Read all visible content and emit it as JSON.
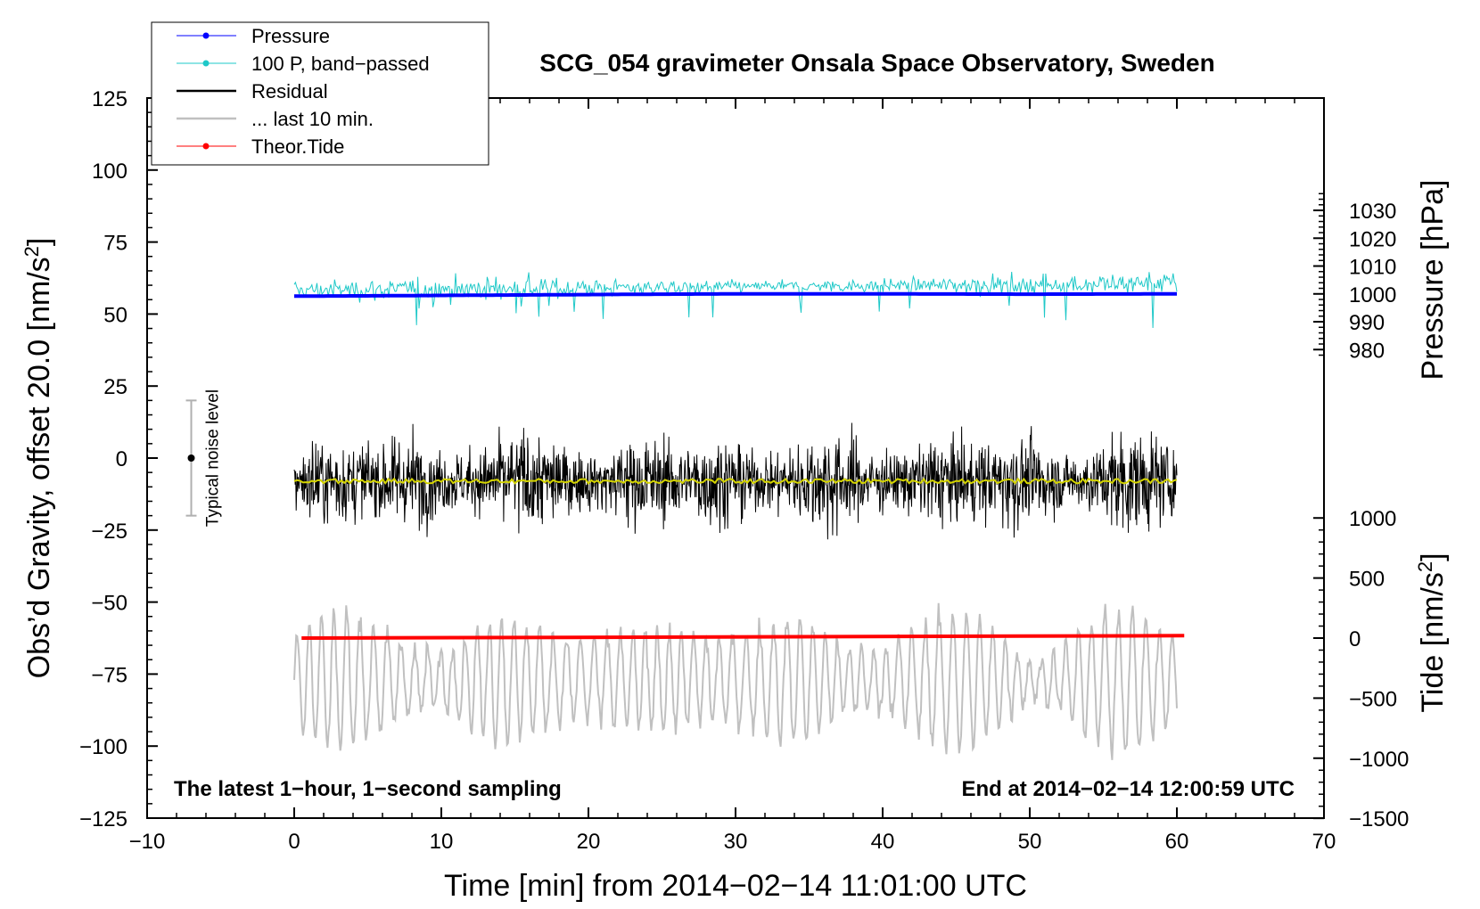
{
  "chart_data": {
    "type": "line",
    "title": "SCG_054 gravimeter Onsala Space Observatory, Sweden",
    "xlabel": "Time [min] from 2014−02−14 11:01:00 UTC",
    "ylabel_main": "Obs’d Gravity, offset 20.0 [nm/s",
    "ylabel_main_sup": "2",
    "ylabel_main_end": "]",
    "ylabel_pressure": "Pressure [hPa]",
    "ylabel_tide": "Tide [nm/s",
    "ylabel_tide_sup": "2",
    "ylabel_tide_end": "]",
    "xlim": [
      -10,
      70
    ],
    "ylim": [
      -125,
      125
    ],
    "x_ticks": [
      -10,
      0,
      10,
      20,
      30,
      40,
      50,
      60,
      70
    ],
    "x_tick_labels": [
      "−10",
      "0",
      "10",
      "20",
      "30",
      "40",
      "50",
      "60",
      "70"
    ],
    "y_ticks": [
      125,
      100,
      75,
      50,
      25,
      0,
      -25,
      -50,
      -75,
      -100,
      -125
    ],
    "y_tick_labels": [
      "125",
      "100",
      "75",
      "50",
      "25",
      "0",
      "−25",
      "−50",
      "−75",
      "−100",
      "−125"
    ],
    "pressure_axis": {
      "ticks": [
        1030,
        1020,
        1010,
        1000,
        990,
        980
      ],
      "tick_labels": [
        "1030",
        "1020",
        "1010",
        "1000",
        "990",
        "980"
      ],
      "zero_at_gravity": 57,
      "units_per_hpa": 0.9667
    },
    "tide_axis": {
      "ticks": [
        1000,
        500,
        0,
        -500,
        -1000,
        -1500
      ],
      "tick_labels": [
        "1000",
        "500",
        "0",
        "−500",
        "−1000",
        "−1500"
      ],
      "zero_at_gravity": -62.5,
      "units_per_nms2": 0.0417
    },
    "series": [
      {
        "name": "Pressure",
        "color": "#0000ff",
        "style": "dots",
        "level_hpa": [
          999.2,
          999.3,
          999.6,
          999.9,
          1000.0,
          1000.0,
          999.9,
          1000.0
        ],
        "level_x": [
          0,
          5,
          15,
          25,
          30,
          40,
          50,
          60
        ]
      },
      {
        "name": "100 P, band−passed",
        "color": "#1ec8c8",
        "style": "dots",
        "center": 59.5,
        "amplitude": 4.5
      },
      {
        "name": "Residual",
        "color": "#000000",
        "style": "line",
        "center": -8,
        "amplitude": 13
      },
      {
        "name": "... last 10 min.",
        "color": "#c0c0c0",
        "style": "line",
        "center": -77,
        "amplitude": 13
      },
      {
        "name": "Theor.Tide",
        "color": "#ff0000",
        "style": "dots",
        "start_nms2": 0,
        "end_nms2": 20
      }
    ],
    "smoothed_residual": {
      "color": "#d4d400",
      "level": -8
    },
    "noise_bar": {
      "label": "Typical noise level",
      "x": -7,
      "center": 0,
      "half_range": 20
    },
    "annotation_left": "The latest 1−hour, 1−second sampling",
    "annotation_right": "End at 2014−02−14 12:00:59 UTC"
  }
}
